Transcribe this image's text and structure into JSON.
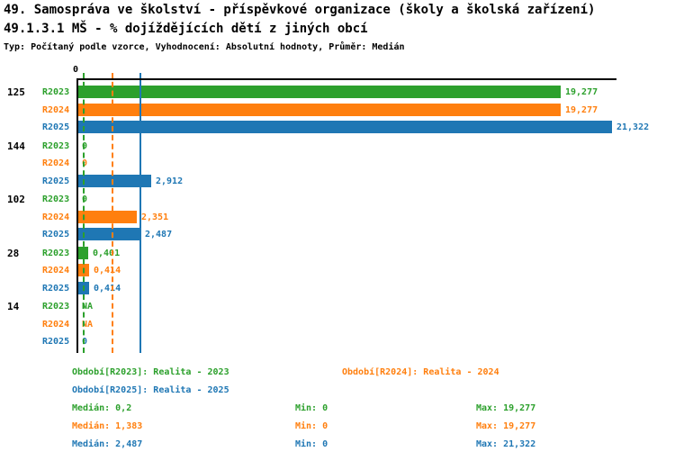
{
  "header": {
    "title": "49. Samospráva ve školství - příspěvkové organizace (školy a školská zařízení)",
    "subtitle": "49.1.3.1 MŠ - % dojíždějících dětí z jiných obcí",
    "meta": "Typ: Počítaný podle vzorce, Vyhodnocení: Absolutní hodnoty, Průměr: Medián"
  },
  "chart_data": {
    "type": "bar",
    "orientation": "horizontal",
    "axis_origin_tick_label": "0",
    "xlim": [
      0,
      21.6
    ],
    "grid": "median-reference-lines",
    "legend_position": "bottom",
    "series": [
      {
        "id": "r2023",
        "label": "R2023",
        "color": "#2ca02c",
        "legend": "Období[R2023]: Realita - 2023",
        "median": 0.2,
        "median_display": "0,2",
        "min_display": "0",
        "max_display": "19,277",
        "line_style": "dashed"
      },
      {
        "id": "r2024",
        "label": "R2024",
        "color": "#ff7f0e",
        "legend": "Období[R2024]: Realita - 2024",
        "median": 1.383,
        "median_display": "1,383",
        "min_display": "0",
        "max_display": "19,277",
        "line_style": "dashed"
      },
      {
        "id": "r2025",
        "label": "R2025",
        "color": "#1f77b4",
        "legend": "Období[R2025]: Realita - 2025",
        "median": 2.487,
        "median_display": "2,487",
        "min_display": "0",
        "max_display": "21,322",
        "line_style": "solid"
      }
    ],
    "groups": [
      {
        "label": "125",
        "values": [
          19.277,
          19.277,
          21.322
        ],
        "displays": [
          "19,277",
          "19,277",
          "21,322"
        ]
      },
      {
        "label": "144",
        "values": [
          0,
          0,
          2.912
        ],
        "displays": [
          "0",
          "0",
          "2,912"
        ]
      },
      {
        "label": "102",
        "values": [
          0,
          2.351,
          2.487
        ],
        "displays": [
          "0",
          "2,351",
          "2,487"
        ]
      },
      {
        "label": "28",
        "values": [
          0.401,
          0.414,
          0.414
        ],
        "displays": [
          "0,401",
          "0,414",
          "0,414"
        ]
      },
      {
        "label": "14",
        "values": [
          null,
          null,
          0
        ],
        "displays": [
          "NA",
          "NA",
          "0"
        ]
      }
    ]
  },
  "footer": {
    "stat_labels": {
      "median": "Medián",
      "min": "Min",
      "max": "Max"
    }
  }
}
